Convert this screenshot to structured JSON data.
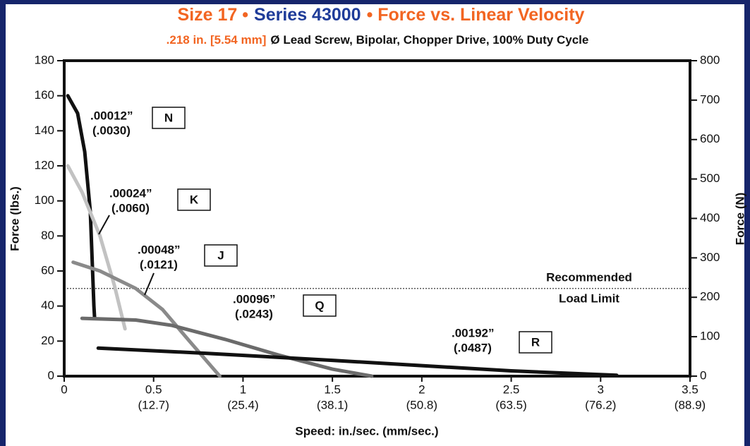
{
  "chart_data": {
    "type": "line",
    "title_parts": [
      {
        "text": "Size 17 •",
        "color": "#f26522"
      },
      {
        "text": "Series 43000",
        "color": "#1f3c99"
      },
      {
        "text": "• Force vs. Linear Velocity",
        "color": "#f26522"
      }
    ],
    "subtitle_parts": [
      {
        "text": ".218 in. [5.54 mm]",
        "color": "#f26522"
      },
      {
        "text": "Ø Lead Screw, Bipolar, Chopper Drive, 100% Duty Cycle",
        "color": "#111111"
      }
    ],
    "x_label": "Speed:  in./sec.  (mm/sec.)",
    "y_label": "Force (lbs.)",
    "y2_label": "Force (N)",
    "xlim": [
      0,
      3.5
    ],
    "xticks": [
      0,
      0.5,
      1,
      1.5,
      2,
      2.5,
      3,
      3.5
    ],
    "xtick_mm_labels": [
      null,
      "(12.7)",
      "(25.4)",
      "(38.1)",
      "(50.8)",
      "(63.5)",
      "(76.2)",
      "(88.9)"
    ],
    "ylim": [
      0,
      180
    ],
    "yticks": [
      0,
      20,
      40,
      60,
      80,
      100,
      120,
      140,
      160,
      180
    ],
    "y2lim": [
      0,
      800
    ],
    "y2ticks": [
      0,
      100,
      200,
      300,
      400,
      500,
      600,
      700,
      800
    ],
    "reference_line": {
      "value": 50,
      "label_lines": [
        "Recommended",
        "Load Limit"
      ]
    },
    "series": [
      {
        "name": "N",
        "lead": ".00012”",
        "lead_mm": "(.0030)",
        "color": "#111111",
        "x": [
          0.02,
          0.075,
          0.115,
          0.146,
          0.166,
          0.17
        ],
        "values": [
          160,
          150,
          128,
          94,
          40,
          33
        ]
      },
      {
        "name": "K",
        "lead": ".00024”",
        "lead_mm": "(.0060)",
        "color": "#c2c2c2",
        "x": [
          0.02,
          0.1,
          0.2,
          0.28,
          0.34
        ],
        "values": [
          120,
          105,
          80,
          52,
          27
        ]
      },
      {
        "name": "J",
        "lead": ".00048”",
        "lead_mm": "(.0121)",
        "color": "#8a8a8a",
        "x": [
          0.05,
          0.2,
          0.4,
          0.55,
          0.7,
          0.87
        ],
        "values": [
          65,
          60,
          50,
          38,
          20,
          0
        ]
      },
      {
        "name": "Q",
        "lead": ".00096”",
        "lead_mm": "(.0243)",
        "color": "#6b6b6b",
        "x": [
          0.1,
          0.4,
          0.6,
          0.9,
          1.2,
          1.5,
          1.72
        ],
        "values": [
          33,
          32,
          29,
          21,
          12,
          4,
          0
        ]
      },
      {
        "name": "R",
        "lead": ".00192”",
        "lead_mm": "(.0487)",
        "color": "#111111",
        "x": [
          0.19,
          0.8,
          1.5,
          2.0,
          2.5,
          3.09
        ],
        "values": [
          16,
          13,
          9,
          6,
          3,
          0.5
        ]
      }
    ]
  }
}
